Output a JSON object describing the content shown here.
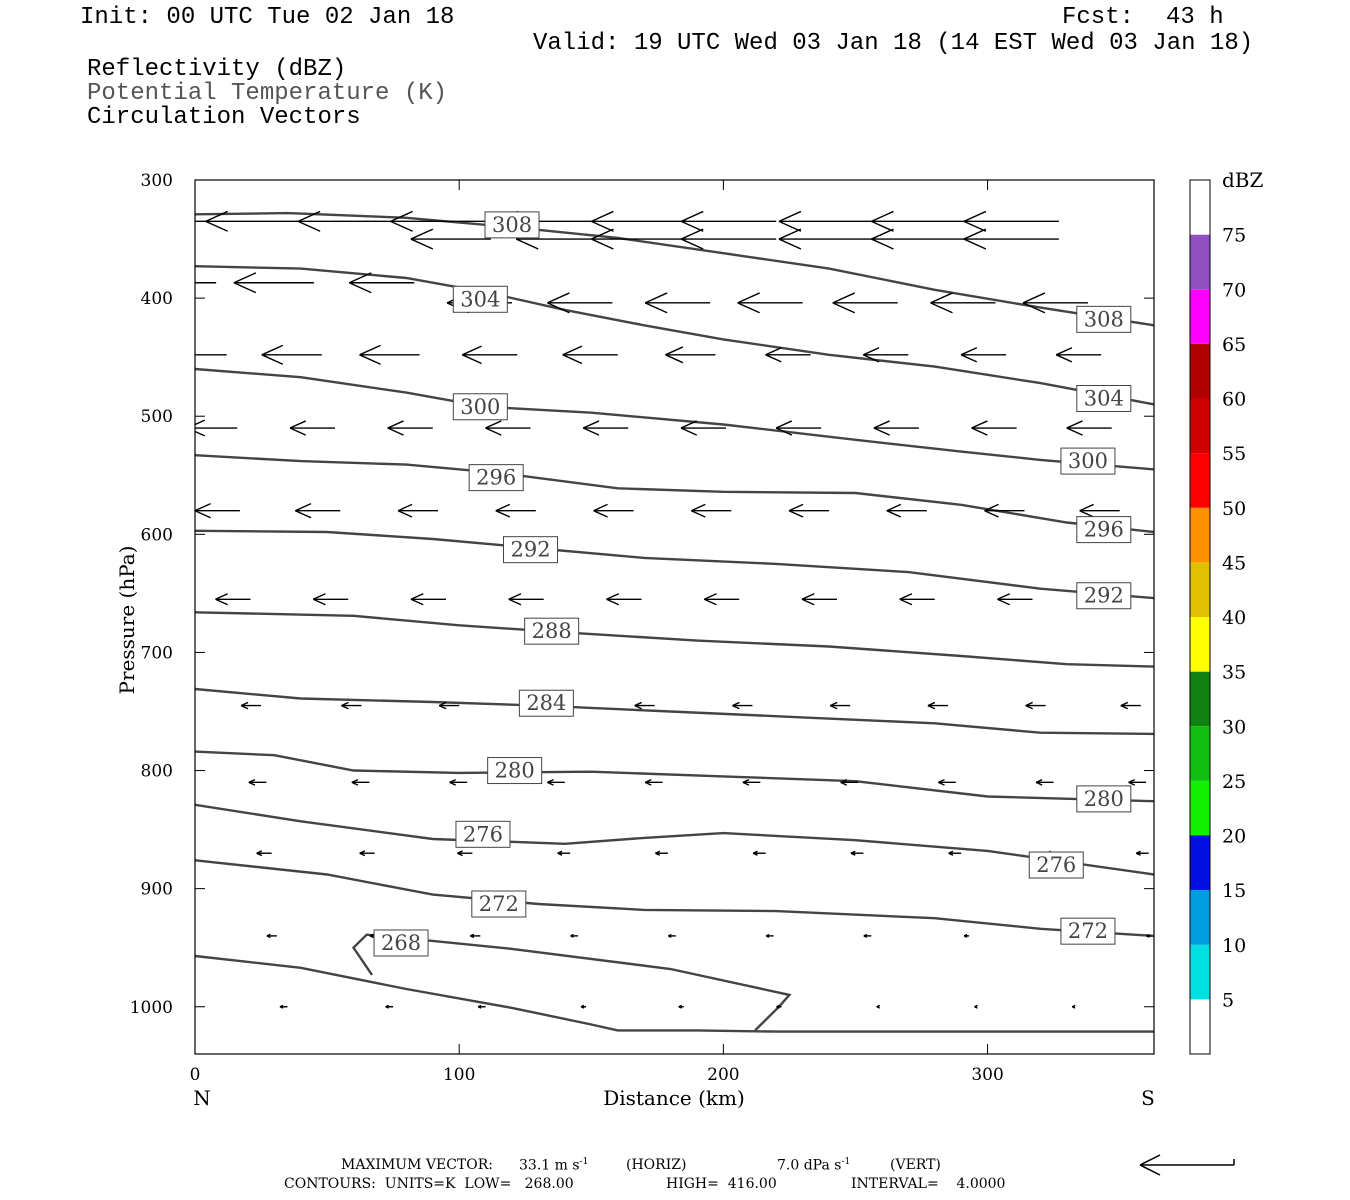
{
  "header": {
    "init": "Init: 00 UTC Tue 02 Jan 18",
    "fcst_label": "Fcst:",
    "fcst_value": "43 h",
    "valid": "Valid: 19 UTC Wed 03 Jan 18 (14 EST Wed 03 Jan 18)",
    "field_reflectivity": "Reflectivity (dBZ)",
    "field_theta": "Potential Temperature (K)",
    "field_vectors": "Circulation Vectors"
  },
  "footer": {
    "max_vector_label": "MAXIMUM VECTOR:",
    "max_vector_horiz": "33.1 m s",
    "horiz_tag": "(HORIZ)",
    "max_vector_vert": "7.0 dPa s",
    "vert_tag": "(VERT)",
    "exponent": "-1",
    "contours": "CONTOURS:  UNITS=K  LOW=   268.00",
    "high": "HIGH=  416.00",
    "interval": "INTERVAL=    4.0000"
  },
  "chart_data": {
    "type": "line",
    "title": "",
    "xlabel": "Distance (km)",
    "ylabel": "Pressure (hPa)",
    "xlim": [
      0,
      363
    ],
    "ylim": [
      1040,
      300
    ],
    "x_ticks": [
      0,
      100,
      200,
      300
    ],
    "y_ticks": [
      300,
      400,
      500,
      600,
      700,
      800,
      900,
      1000
    ],
    "left_end_label": "N",
    "right_end_label": "S",
    "contour_color": "#444444",
    "contours": [
      {
        "level": "308",
        "points": [
          [
            0,
            329
          ],
          [
            35,
            328
          ],
          [
            80,
            332
          ],
          [
            120,
            340
          ],
          [
            160,
            349
          ],
          [
            200,
            362
          ],
          [
            240,
            375
          ],
          [
            280,
            393
          ],
          [
            320,
            408
          ],
          [
            363,
            423
          ]
        ],
        "label_at": [
          [
            120,
            338
          ],
          [
            344,
            418
          ]
        ]
      },
      {
        "level": "304",
        "points": [
          [
            0,
            373
          ],
          [
            40,
            375
          ],
          [
            80,
            383
          ],
          [
            110,
            395
          ],
          [
            140,
            410
          ],
          [
            170,
            423
          ],
          [
            200,
            435
          ],
          [
            240,
            448
          ],
          [
            280,
            458
          ],
          [
            320,
            472
          ],
          [
            363,
            490
          ]
        ],
        "label_at": [
          [
            108,
            401
          ],
          [
            344,
            485
          ]
        ]
      },
      {
        "level": "300",
        "points": [
          [
            0,
            460
          ],
          [
            40,
            467
          ],
          [
            80,
            480
          ],
          [
            110,
            492
          ],
          [
            150,
            497
          ],
          [
            200,
            507
          ],
          [
            250,
            520
          ],
          [
            290,
            530
          ],
          [
            320,
            537
          ],
          [
            363,
            545
          ]
        ],
        "label_at": [
          [
            108,
            492
          ],
          [
            338,
            538
          ]
        ]
      },
      {
        "level": "296",
        "points": [
          [
            0,
            533
          ],
          [
            40,
            538
          ],
          [
            80,
            541
          ],
          [
            115,
            548
          ],
          [
            160,
            561
          ],
          [
            200,
            564
          ],
          [
            250,
            565
          ],
          [
            290,
            575
          ],
          [
            330,
            590
          ],
          [
            363,
            598
          ]
        ],
        "label_at": [
          [
            114,
            552
          ],
          [
            344,
            596
          ]
        ]
      },
      {
        "level": "292",
        "points": [
          [
            0,
            597
          ],
          [
            50,
            598
          ],
          [
            90,
            604
          ],
          [
            130,
            612
          ],
          [
            170,
            620
          ],
          [
            220,
            625
          ],
          [
            270,
            632
          ],
          [
            320,
            646
          ],
          [
            363,
            654
          ]
        ],
        "label_at": [
          [
            127,
            613
          ],
          [
            344,
            652
          ]
        ]
      },
      {
        "level": "288",
        "points": [
          [
            0,
            666
          ],
          [
            60,
            669
          ],
          [
            100,
            677
          ],
          [
            140,
            683
          ],
          [
            190,
            690
          ],
          [
            240,
            695
          ],
          [
            290,
            703
          ],
          [
            330,
            710
          ],
          [
            363,
            712
          ]
        ],
        "label_at": [
          [
            135,
            682
          ]
        ]
      },
      {
        "level": "284",
        "points": [
          [
            0,
            731
          ],
          [
            40,
            739
          ],
          [
            90,
            742
          ],
          [
            130,
            745
          ],
          [
            180,
            750
          ],
          [
            230,
            755
          ],
          [
            280,
            760
          ],
          [
            320,
            768
          ],
          [
            363,
            769
          ]
        ],
        "label_at": [
          [
            133,
            743
          ]
        ]
      },
      {
        "level": "280",
        "points": [
          [
            0,
            784
          ],
          [
            30,
            787
          ],
          [
            60,
            800
          ],
          [
            100,
            802
          ],
          [
            150,
            801
          ],
          [
            200,
            805
          ],
          [
            250,
            809
          ],
          [
            300,
            822
          ],
          [
            363,
            826
          ]
        ],
        "label_at": [
          [
            121,
            800
          ],
          [
            344,
            824
          ]
        ]
      },
      {
        "level": "276",
        "points": [
          [
            0,
            829
          ],
          [
            40,
            843
          ],
          [
            90,
            858
          ],
          [
            140,
            862
          ],
          [
            170,
            857
          ],
          [
            200,
            853
          ],
          [
            250,
            859
          ],
          [
            300,
            868
          ],
          [
            363,
            888
          ]
        ],
        "label_at": [
          [
            109,
            854
          ],
          [
            326,
            880
          ]
        ]
      },
      {
        "level": "272",
        "points": [
          [
            0,
            876
          ],
          [
            50,
            888
          ],
          [
            90,
            905
          ],
          [
            130,
            913
          ],
          [
            170,
            918
          ],
          [
            220,
            919
          ],
          [
            280,
            925
          ],
          [
            320,
            934
          ],
          [
            363,
            940
          ]
        ],
        "label_at": [
          [
            115,
            913
          ],
          [
            338,
            936
          ]
        ]
      },
      {
        "level": "268",
        "points": [
          [
            67,
            973
          ],
          [
            60,
            950
          ],
          [
            65,
            939
          ],
          [
            80,
            942
          ],
          [
            120,
            951
          ],
          [
            180,
            968
          ],
          [
            225,
            990
          ],
          [
            221,
            1000
          ],
          [
            212,
            1020
          ]
        ],
        "label_at": [
          [
            78,
            946
          ]
        ]
      },
      {
        "level": "",
        "points": [
          [
            0,
            957
          ],
          [
            40,
            967
          ],
          [
            80,
            985
          ],
          [
            120,
            1001
          ],
          [
            150,
            1015
          ],
          [
            160,
            1020
          ],
          [
            190,
            1020
          ],
          [
            220,
            1021
          ],
          [
            260,
            1021
          ],
          [
            363,
            1021
          ]
        ],
        "label_at": []
      }
    ],
    "vector_rows": [
      {
        "p": 335,
        "x": [
          5,
          40,
          75,
          110,
          150,
          186,
          220,
          257,
          292,
          327
        ],
        "u": [
          -38,
          -38,
          -38,
          -38,
          -38,
          -38,
          -38,
          -38,
          -38,
          -38
        ]
      },
      {
        "p": 350,
        "x": [
          112,
          150,
          186,
          220,
          257,
          292,
          327
        ],
        "u": [
          -32,
          -30,
          -38,
          -38,
          -38,
          -38,
          -38
        ]
      },
      {
        "p": 387,
        "x": [
          8,
          45,
          83
        ],
        "u": [
          -36,
          -32,
          -26
        ]
      },
      {
        "p": 404,
        "x": [
          120,
          158,
          195,
          230,
          266,
          303,
          338
        ],
        "u": [
          -26,
          -26,
          -26,
          -26,
          -26,
          -26,
          -26
        ]
      },
      {
        "p": 448,
        "x": [
          12,
          48,
          85,
          122,
          160,
          197,
          233,
          270,
          307,
          343
        ],
        "u": [
          -24,
          -24,
          -24,
          -22,
          -22,
          -20,
          -18,
          -18,
          -18,
          -18
        ]
      },
      {
        "p": 510,
        "x": [
          16,
          53,
          90,
          127,
          164,
          201,
          237,
          274,
          311,
          347
        ],
        "u": [
          -20,
          -18,
          -18,
          -18,
          -18,
          -18,
          -18,
          -18,
          -18,
          -18
        ]
      },
      {
        "p": 580,
        "x": [
          17,
          55,
          92,
          129,
          166,
          203,
          240,
          277,
          314,
          350
        ],
        "u": [
          -18,
          -18,
          -16,
          -16,
          -16,
          -16,
          -16,
          -16,
          -16,
          -16
        ]
      },
      {
        "p": 655,
        "x": [
          21,
          58,
          95,
          132,
          169,
          206,
          243,
          280,
          317,
          353
        ],
        "u": [
          -14,
          -14,
          -14,
          -14,
          -14,
          -14,
          -14,
          -14,
          -14,
          -14
        ]
      },
      {
        "p": 745,
        "x": [
          25,
          63,
          100,
          137,
          174,
          211,
          248,
          285,
          322,
          358
        ],
        "u": [
          -8,
          -8,
          -8,
          -8,
          -8,
          -8,
          -8,
          -8,
          -8,
          -8
        ]
      },
      {
        "p": 810,
        "x": [
          27,
          66,
          103,
          140,
          177,
          214,
          251,
          288,
          325,
          360
        ],
        "u": [
          -7,
          -7,
          -7,
          -7,
          -7,
          -7,
          -7,
          -7,
          -7,
          -7
        ]
      },
      {
        "p": 870,
        "x": [
          29,
          68,
          105,
          142,
          179,
          216,
          253,
          290,
          327,
          361
        ],
        "u": [
          -6,
          -6,
          -6,
          -5,
          -5,
          -5,
          -5,
          -5,
          -5,
          -5
        ]
      },
      {
        "p": 940,
        "x": [
          31,
          70,
          108,
          145,
          182,
          219,
          256,
          293,
          330,
          362
        ],
        "u": [
          -4,
          -4,
          -4,
          -3,
          -3,
          -3,
          -3,
          -2,
          -2,
          -2
        ]
      },
      {
        "p": 1000,
        "x": [
          35,
          75,
          110,
          148,
          185,
          222,
          259,
          296,
          333
        ],
        "u": [
          -3,
          -3,
          -3,
          -2,
          -2,
          -2,
          -1,
          -1,
          -1
        ]
      }
    ],
    "colorbar": {
      "title": "dBZ",
      "levels": [
        "5",
        "10",
        "15",
        "20",
        "25",
        "30",
        "35",
        "40",
        "45",
        "50",
        "55",
        "60",
        "65",
        "70",
        "75"
      ],
      "colors": [
        "#ffffff",
        "#00e0e0",
        "#009ee0",
        "#0010e0",
        "#10f000",
        "#10c010",
        "#108010",
        "#ffff00",
        "#e0c000",
        "#ff9000",
        "#ff0000",
        "#d00000",
        "#b00000",
        "#ff00ff",
        "#9050c0",
        "#ffffff"
      ]
    },
    "reference_vector": "max"
  }
}
